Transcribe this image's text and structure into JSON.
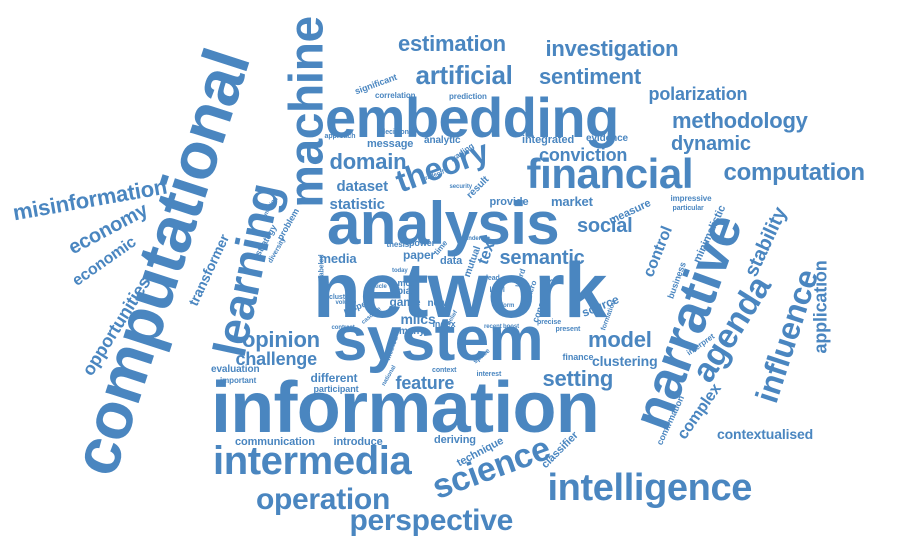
{
  "style": {
    "word_color": "#4a86c0",
    "background": "#ffffff"
  },
  "words": {
    "network": "network",
    "information": "information",
    "computational": "computational",
    "system": "system",
    "analysis": "analysis",
    "embedding": "embedding",
    "narrative": "narrative",
    "machine": "machine",
    "learning": "learning",
    "financial": "financial",
    "intermedia": "intermedia",
    "intelligence": "intelligence",
    "science": "science",
    "agenda": "agenda",
    "theory": "theory",
    "influence": "influence",
    "operation": "operation",
    "perspective": "perspective",
    "artificial": "artificial",
    "estimation": "estimation",
    "investigation": "investigation",
    "sentiment": "sentiment",
    "polarization": "polarization",
    "methodology": "methodology",
    "dynamic": "dynamic",
    "computation": "computation",
    "domain": "domain",
    "conviction": "conviction",
    "misinformation": "misinformation",
    "economy": "economy",
    "economic": "economic",
    "opportunities": "opportunities",
    "transformer": "transformer",
    "semantic": "semantic",
    "social": "social",
    "model": "model",
    "opinion": "opinion",
    "challenge": "challenge",
    "setting": "setting",
    "feature": "feature",
    "stability": "stability",
    "application": "application",
    "complex": "complex",
    "clustering": "clustering",
    "contextualised": "contextualised",
    "communication": "communication",
    "introduce": "introduce",
    "deriving": "deriving",
    "technique": "technique",
    "classifier": "classifier",
    "dataset": "dataset",
    "statistic": "statistic",
    "market": "market",
    "control": "control",
    "provide": "provide",
    "integrated": "integrated",
    "message": "message",
    "analytic": "analytic",
    "evidence": "evidence",
    "media": "media",
    "paper": "paper",
    "data": "data",
    "game": "game",
    "source": "source",
    "minimalistic": "minimalistic",
    "measure": "measure",
    "different": "different",
    "evaluation": "evaluation",
    "participant": "participant",
    "important": "important",
    "milcs": "milcs",
    "many": "many",
    "bias": "bias",
    "most": "most",
    "new": "new",
    "index": "index",
    "finance": "finance",
    "present": "present",
    "interpret": "interpret",
    "business": "business",
    "confirmation": "confirmation",
    "formation": "formation",
    "significant": "significant",
    "approach": "approach",
    "correlation": "correlation",
    "prediction": "prediction",
    "decision": "decision",
    "trading": "trading",
    "impressive": "impressive",
    "particular": "particular",
    "security": "security",
    "result": "result",
    "problem": "problem",
    "strategy": "strategy",
    "diversity": "diversity",
    "thesis": "thesis",
    "power": "power",
    "time": "time",
    "mutual": "mutual",
    "consensus": "consensus",
    "word": "word",
    "macro": "macro",
    "text": "text",
    "lead": "lead",
    "level": "level",
    "cluster": "cluster",
    "unlabeled": "unlabeled",
    "respect": "respect",
    "volume": "volume",
    "contrast": "contrast",
    "method": "method",
    "national": "national",
    "context": "context",
    "interest": "interest",
    "space": "space",
    "belief": "belief",
    "tradeoff": "tradeoff",
    "article": "article",
    "binder": "binder",
    "cascade": "cascade",
    "precise": "precise",
    "recent": "recent",
    "boost": "boost",
    "smoking": "smoking",
    "inform": "inform",
    "today": "today"
  }
}
